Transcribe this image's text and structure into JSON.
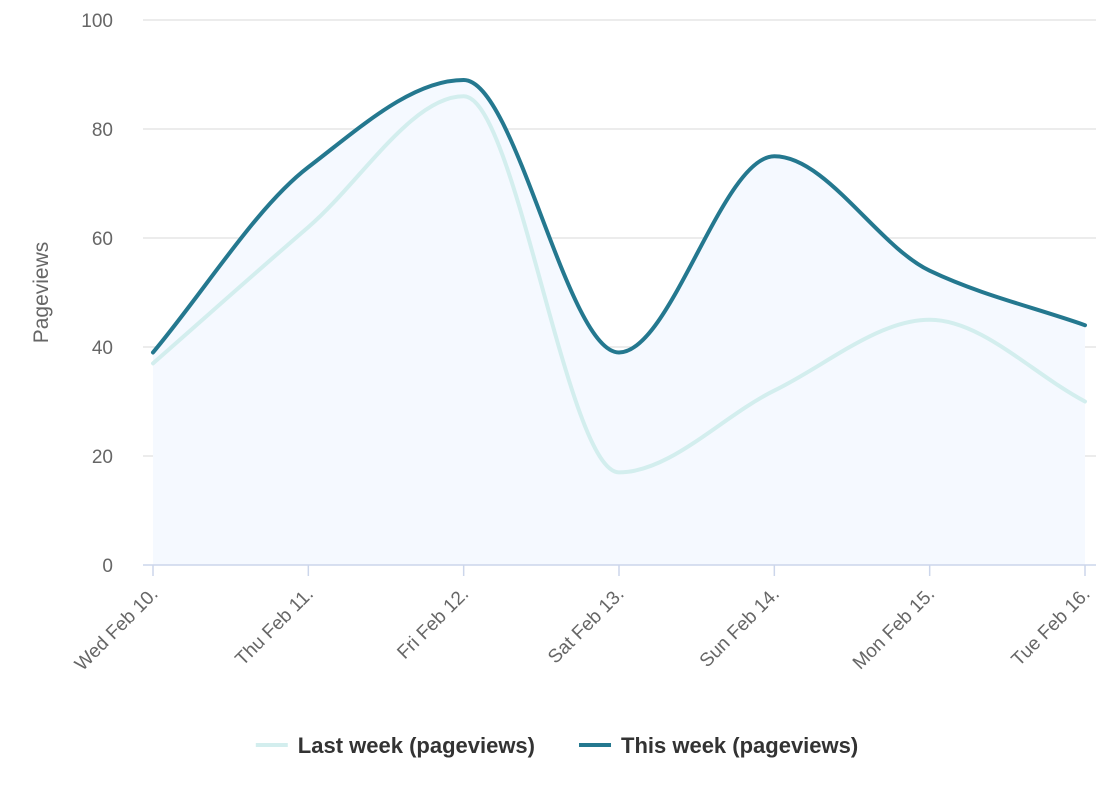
{
  "chart_data": {
    "type": "area",
    "x": [
      "Wed Feb 10.",
      "Thu Feb 11.",
      "Fri Feb 12.",
      "Sat Feb 13.",
      "Sun Feb 14.",
      "Mon Feb 15.",
      "Tue Feb 16."
    ],
    "ylabel": "Pageviews",
    "ylim": [
      0,
      100
    ],
    "yticks": [
      0,
      20,
      40,
      60,
      80,
      100
    ],
    "grid": true,
    "legend_position": "bottom-center",
    "series": [
      {
        "name": "Last week (pageviews)",
        "values": [
          37,
          62,
          86,
          17,
          32,
          45,
          30
        ],
        "color": "#d3eeee",
        "filled": false
      },
      {
        "name": "This week (pageviews)",
        "values": [
          39,
          73,
          89,
          39,
          75,
          54,
          44
        ],
        "color": "#24788f",
        "filled": true,
        "fill_color": "#f5f9ff"
      }
    ]
  }
}
